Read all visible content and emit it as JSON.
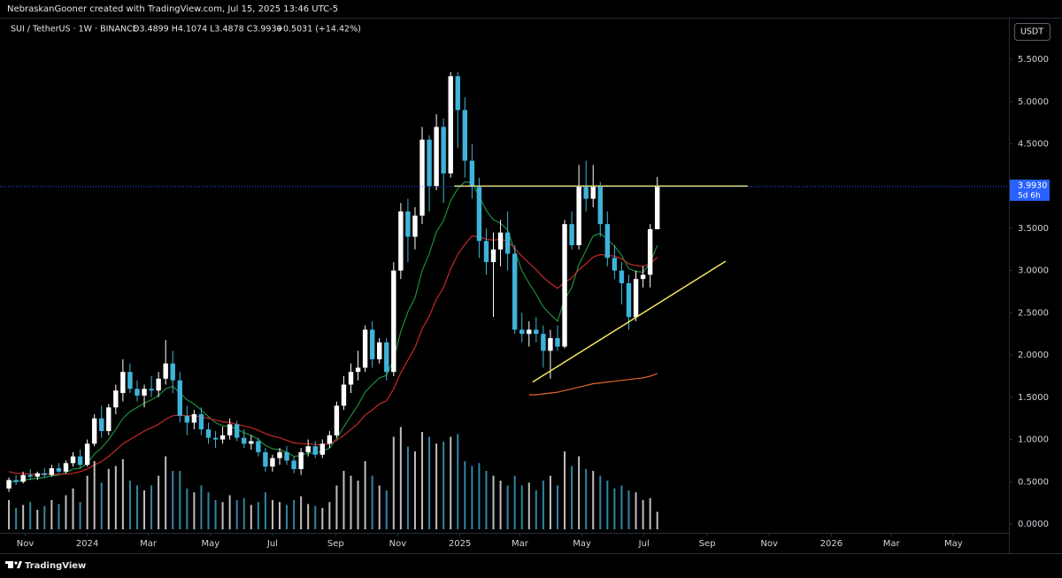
{
  "header": {
    "credit": "NebraskanGooner created with TradingView.com, Jul 15, 2025 13:46 UTC-5"
  },
  "chart_data": {
    "type": "candlestick",
    "title": "SUI / TetherUS · 1W · BINANCE",
    "ohlc": "O3.4899 H4.1074 L3.4878 C3.9930",
    "change": "+0.5031 (+14.42%)",
    "unit_button": "USDT",
    "up_color": "#ffffff",
    "down_color": "#3fb3d9",
    "x": [
      0,
      1,
      2,
      3,
      4,
      5,
      6,
      7,
      8,
      9,
      10,
      11,
      12,
      13,
      14,
      15,
      16,
      17,
      18,
      19,
      20,
      21,
      22,
      23,
      24,
      25,
      26,
      27,
      28,
      29,
      30,
      31,
      32,
      33,
      34,
      35,
      36,
      37,
      38,
      39,
      40,
      41,
      42,
      43,
      44,
      45,
      46,
      47,
      48,
      49,
      50,
      51,
      52,
      53,
      54,
      55,
      56,
      57,
      58,
      59,
      60,
      61,
      62,
      63,
      64,
      65,
      66,
      67,
      68,
      69,
      70,
      71,
      72,
      73,
      74,
      75,
      76,
      77,
      78,
      79,
      80,
      81,
      82,
      83,
      84,
      85,
      86,
      87,
      88,
      89,
      90,
      91
    ],
    "open": [
      0.42,
      0.52,
      0.5,
      0.58,
      0.56,
      0.6,
      0.58,
      0.66,
      0.62,
      0.72,
      0.8,
      0.7,
      0.95,
      1.25,
      1.1,
      1.38,
      1.55,
      1.8,
      1.6,
      1.52,
      1.6,
      1.58,
      1.72,
      1.9,
      1.7,
      1.28,
      1.2,
      1.3,
      1.12,
      1.02,
      1.0,
      1.05,
      1.18,
      1.02,
      0.95,
      0.98,
      0.85,
      0.68,
      0.78,
      0.85,
      0.75,
      0.65,
      0.85,
      0.92,
      0.82,
      0.95,
      1.05,
      1.4,
      1.65,
      1.8,
      1.85,
      2.3,
      1.95,
      2.15,
      1.8,
      3.0,
      3.7,
      3.4,
      3.65,
      4.55,
      4.0,
      4.7,
      4.15,
      5.3,
      4.9,
      4.3,
      4.0,
      3.35,
      3.1,
      3.25,
      3.45,
      3.2,
      2.3,
      2.25,
      2.3,
      2.25,
      2.05,
      2.2,
      2.1,
      3.55,
      3.3,
      4.0,
      3.85,
      4.0,
      3.55,
      3.15,
      3.0,
      2.85,
      2.45,
      2.9,
      2.95,
      3.4899
    ],
    "high": [
      0.55,
      0.58,
      0.62,
      0.65,
      0.62,
      0.66,
      0.7,
      0.72,
      0.75,
      0.85,
      0.88,
      1.0,
      1.3,
      1.4,
      1.42,
      1.65,
      1.95,
      1.9,
      1.7,
      1.65,
      1.75,
      1.8,
      2.18,
      2.05,
      1.8,
      1.4,
      1.35,
      1.38,
      1.2,
      1.1,
      1.15,
      1.25,
      1.22,
      1.12,
      1.05,
      1.02,
      0.9,
      0.82,
      0.9,
      0.92,
      0.8,
      0.9,
      1.0,
      0.98,
      1.0,
      1.1,
      1.45,
      1.75,
      1.9,
      2.05,
      2.35,
      2.4,
      2.2,
      2.2,
      3.1,
      3.8,
      3.85,
      3.75,
      4.7,
      4.6,
      4.85,
      4.8,
      5.35,
      5.35,
      5.05,
      4.5,
      4.1,
      3.5,
      3.45,
      3.6,
      3.7,
      3.3,
      2.5,
      2.4,
      2.45,
      2.35,
      2.3,
      2.35,
      3.6,
      3.7,
      4.25,
      4.3,
      4.25,
      4.05,
      3.7,
      3.3,
      3.1,
      2.95,
      3.0,
      3.05,
      3.55,
      4.1074
    ],
    "low": [
      0.38,
      0.46,
      0.48,
      0.52,
      0.52,
      0.55,
      0.56,
      0.6,
      0.6,
      0.68,
      0.66,
      0.68,
      0.92,
      1.02,
      1.05,
      1.3,
      1.45,
      1.55,
      1.45,
      1.38,
      1.5,
      1.5,
      1.65,
      1.55,
      1.2,
      1.05,
      1.12,
      1.05,
      0.95,
      0.9,
      0.95,
      1.0,
      0.98,
      0.9,
      0.88,
      0.8,
      0.62,
      0.62,
      0.7,
      0.7,
      0.6,
      0.58,
      0.8,
      0.78,
      0.78,
      0.9,
      1.02,
      1.35,
      1.55,
      1.7,
      1.8,
      1.85,
      1.9,
      1.7,
      1.75,
      2.9,
      3.1,
      3.25,
      3.55,
      3.7,
      3.95,
      3.8,
      4.1,
      4.45,
      4.1,
      3.85,
      3.15,
      2.95,
      2.45,
      3.05,
      3.0,
      2.25,
      2.15,
      2.1,
      2.15,
      1.85,
      1.72,
      2.05,
      2.08,
      3.25,
      3.25,
      3.7,
      3.75,
      3.4,
      3.05,
      2.9,
      2.6,
      2.3,
      2.4,
      2.8,
      2.8,
      3.4878
    ],
    "close": [
      0.52,
      0.5,
      0.58,
      0.56,
      0.6,
      0.58,
      0.66,
      0.62,
      0.72,
      0.8,
      0.7,
      0.95,
      1.25,
      1.1,
      1.38,
      1.58,
      1.8,
      1.6,
      1.52,
      1.6,
      1.58,
      1.72,
      1.9,
      1.7,
      1.28,
      1.2,
      1.3,
      1.12,
      1.02,
      1.0,
      1.05,
      1.18,
      1.02,
      0.95,
      0.98,
      0.85,
      0.68,
      0.78,
      0.85,
      0.75,
      0.65,
      0.85,
      0.92,
      0.82,
      0.95,
      1.05,
      1.4,
      1.65,
      1.8,
      1.85,
      2.3,
      1.95,
      2.15,
      1.8,
      3.0,
      3.7,
      3.4,
      3.65,
      4.55,
      4.0,
      4.7,
      4.15,
      5.3,
      4.9,
      4.3,
      4.0,
      3.35,
      3.1,
      3.25,
      3.45,
      3.2,
      2.3,
      2.25,
      2.3,
      2.25,
      2.05,
      2.2,
      2.1,
      3.55,
      3.3,
      4.0,
      3.85,
      4.0,
      3.55,
      3.15,
      3.0,
      2.85,
      2.45,
      2.9,
      2.95,
      3.49,
      3.993
    ],
    "volume": [
      30,
      22,
      25,
      28,
      20,
      24,
      30,
      26,
      35,
      42,
      28,
      55,
      70,
      48,
      62,
      65,
      72,
      50,
      45,
      40,
      45,
      55,
      75,
      60,
      60,
      42,
      38,
      45,
      38,
      30,
      28,
      35,
      30,
      32,
      25,
      28,
      38,
      30,
      28,
      25,
      30,
      34,
      26,
      24,
      22,
      28,
      45,
      60,
      55,
      50,
      70,
      55,
      45,
      40,
      95,
      105,
      85,
      80,
      100,
      95,
      88,
      90,
      95,
      98,
      70,
      65,
      68,
      60,
      55,
      50,
      45,
      55,
      45,
      48,
      40,
      50,
      55,
      45,
      80,
      65,
      75,
      62,
      60,
      55,
      50,
      42,
      45,
      40,
      38,
      30,
      32,
      18
    ],
    "series": [
      {
        "color": "#1e8c3c",
        "values": [
          0.5,
          0.5,
          0.52,
          0.53,
          0.54,
          0.55,
          0.57,
          0.58,
          0.61,
          0.65,
          0.66,
          0.72,
          0.83,
          0.9,
          1.0,
          1.12,
          1.25,
          1.33,
          1.38,
          1.43,
          1.47,
          1.52,
          1.6,
          1.63,
          1.55,
          1.47,
          1.42,
          1.35,
          1.27,
          1.2,
          1.16,
          1.16,
          1.12,
          1.08,
          1.05,
          1.0,
          0.93,
          0.89,
          0.88,
          0.85,
          0.8,
          0.81,
          0.84,
          0.84,
          0.86,
          0.9,
          1.01,
          1.15,
          1.28,
          1.41,
          1.56,
          1.65,
          1.73,
          1.76,
          1.95,
          2.28,
          2.51,
          2.68,
          3.0,
          3.2,
          3.46,
          3.59,
          3.83,
          3.97,
          4.05,
          4.04,
          3.88,
          3.71,
          3.6,
          3.56,
          3.48,
          3.23,
          3.0,
          2.85,
          2.72,
          2.57,
          2.48,
          2.4,
          2.66,
          2.8,
          3.07,
          3.24,
          3.41,
          3.44,
          3.37,
          3.29,
          3.18,
          3.02,
          2.99,
          2.98,
          3.09,
          3.3
        ]
      },
      {
        "color": "#c62828",
        "values": [
          0.62,
          0.6,
          0.6,
          0.59,
          0.59,
          0.59,
          0.59,
          0.59,
          0.59,
          0.6,
          0.62,
          0.65,
          0.7,
          0.74,
          0.8,
          0.87,
          0.95,
          1.0,
          1.05,
          1.1,
          1.14,
          1.18,
          1.24,
          1.28,
          1.29,
          1.28,
          1.28,
          1.27,
          1.25,
          1.23,
          1.21,
          1.2,
          1.18,
          1.16,
          1.14,
          1.11,
          1.07,
          1.04,
          1.02,
          0.99,
          0.96,
          0.95,
          0.95,
          0.94,
          0.94,
          0.95,
          0.99,
          1.05,
          1.12,
          1.19,
          1.29,
          1.35,
          1.42,
          1.46,
          1.6,
          1.79,
          1.94,
          2.09,
          2.31,
          2.46,
          2.66,
          2.8,
          3.02,
          3.19,
          3.31,
          3.41,
          3.4,
          3.37,
          3.36,
          3.37,
          3.35,
          3.26,
          3.17,
          3.09,
          3.01,
          2.92,
          2.85,
          2.79,
          2.86,
          2.91,
          3.01,
          3.08,
          3.16,
          3.19,
          3.18,
          3.17,
          3.14,
          3.08,
          3.06,
          3.05,
          3.08,
          3.16
        ]
      },
      {
        "color": "#e0662a",
        "values": [
          null,
          null,
          null,
          null,
          null,
          null,
          null,
          null,
          null,
          null,
          null,
          null,
          null,
          null,
          null,
          null,
          null,
          null,
          null,
          null,
          null,
          null,
          null,
          null,
          null,
          null,
          null,
          null,
          null,
          null,
          null,
          null,
          null,
          null,
          null,
          null,
          null,
          null,
          null,
          null,
          null,
          null,
          null,
          null,
          null,
          null,
          null,
          null,
          null,
          null,
          null,
          null,
          null,
          null,
          null,
          null,
          null,
          null,
          null,
          null,
          null,
          null,
          null,
          null,
          null,
          null,
          null,
          null,
          null,
          null,
          null,
          null,
          null,
          1.53,
          1.53,
          1.54,
          1.55,
          1.56,
          1.58,
          1.6,
          1.62,
          1.64,
          1.66,
          1.67,
          1.68,
          1.69,
          1.7,
          1.71,
          1.72,
          1.73,
          1.75,
          1.78
        ]
      }
    ],
    "lines": [
      {
        "color": "#f5e663",
        "x": [
          62.5,
          103.7
        ],
        "y": [
          4.0,
          4.0
        ]
      },
      {
        "color": "#f5e663",
        "x": [
          73.5,
          100.6
        ],
        "y": [
          1.68,
          3.11
        ]
      }
    ],
    "last_price": {
      "value": 3.993,
      "label": "3.9930",
      "countdown": "5d 6h",
      "color": "#2962ff"
    },
    "xlim": [
      -1.25,
      140.35
    ],
    "ylim": [
      -0.105,
      5.993
    ],
    "xticks": [
      {
        "value": 2.29,
        "label": "Nov"
      },
      {
        "value": 11.0,
        "label": "2024"
      },
      {
        "value": 19.57,
        "label": "Mar"
      },
      {
        "value": 28.29,
        "label": "May"
      },
      {
        "value": 37.0,
        "label": "Jul"
      },
      {
        "value": 45.86,
        "label": "Sep"
      },
      {
        "value": 54.57,
        "label": "Nov"
      },
      {
        "value": 63.29,
        "label": "2025"
      },
      {
        "value": 71.71,
        "label": "Mar"
      },
      {
        "value": 80.43,
        "label": "May"
      },
      {
        "value": 89.14,
        "label": "Jul"
      },
      {
        "value": 98.0,
        "label": "Sep"
      },
      {
        "value": 106.71,
        "label": "Nov"
      },
      {
        "value": 115.43,
        "label": "2026"
      },
      {
        "value": 123.86,
        "label": "Mar"
      },
      {
        "value": 132.57,
        "label": "May"
      }
    ],
    "yticks": [
      {
        "value": 0,
        "label": "0.0000"
      },
      {
        "value": 0.5,
        "label": "0.5000"
      },
      {
        "value": 1.0,
        "label": "1.0000"
      },
      {
        "value": 1.5,
        "label": "1.5000"
      },
      {
        "value": 2.0,
        "label": "2.0000"
      },
      {
        "value": 2.5,
        "label": "2.5000"
      },
      {
        "value": 3.0,
        "label": "3.0000"
      },
      {
        "value": 3.5,
        "label": "3.5000"
      },
      {
        "value": 4.0,
        "label": "4.0000"
      },
      {
        "value": 4.5,
        "label": "4.5000"
      },
      {
        "value": 5.0,
        "label": "5.0000"
      },
      {
        "value": 5.5,
        "label": "5.5000"
      }
    ]
  },
  "footer": {
    "brand": "TradingView"
  }
}
